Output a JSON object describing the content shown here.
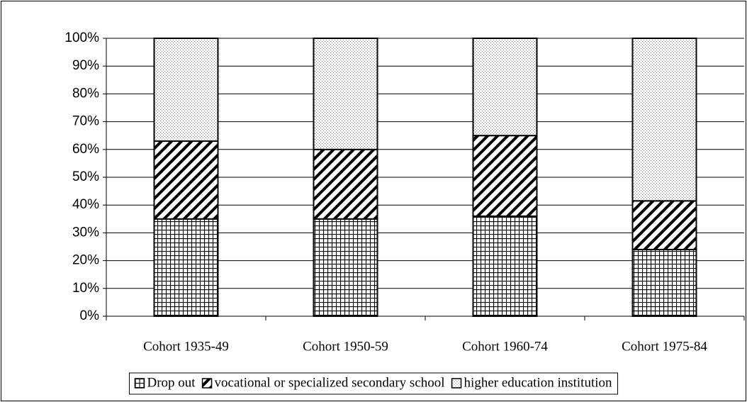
{
  "chart_data": {
    "type": "stacked_bar",
    "categories": [
      "Cohort 1935-49",
      "Cohort 1950-59",
      "Cohort 1960-74",
      "Cohort 1975-84"
    ],
    "series": [
      {
        "name": "Drop out",
        "color": "#000000",
        "pattern": "grid",
        "values": [
          35,
          35,
          36,
          24
        ]
      },
      {
        "name": "vocational or specialized secondary school",
        "color": "#000000",
        "pattern": "diagonal",
        "values": [
          28,
          25,
          29,
          17.5
        ]
      },
      {
        "name": "higher education institution",
        "color": "#000000",
        "pattern": "dots",
        "values": [
          37,
          40,
          35,
          58.5
        ]
      }
    ],
    "ylim": [
      0,
      100
    ],
    "yticks": [
      {
        "value": 0,
        "label": "0%"
      },
      {
        "value": 10,
        "label": "10%"
      },
      {
        "value": 20,
        "label": "20%"
      },
      {
        "value": 30,
        "label": "30%"
      },
      {
        "value": 40,
        "label": "40%"
      },
      {
        "value": 50,
        "label": "50%"
      },
      {
        "value": 60,
        "label": "60%"
      },
      {
        "value": 70,
        "label": "70%"
      },
      {
        "value": 80,
        "label": "80%"
      },
      {
        "value": 90,
        "label": "90%"
      },
      {
        "value": 100,
        "label": "100%"
      }
    ],
    "grid": true,
    "legend": "bottom"
  }
}
